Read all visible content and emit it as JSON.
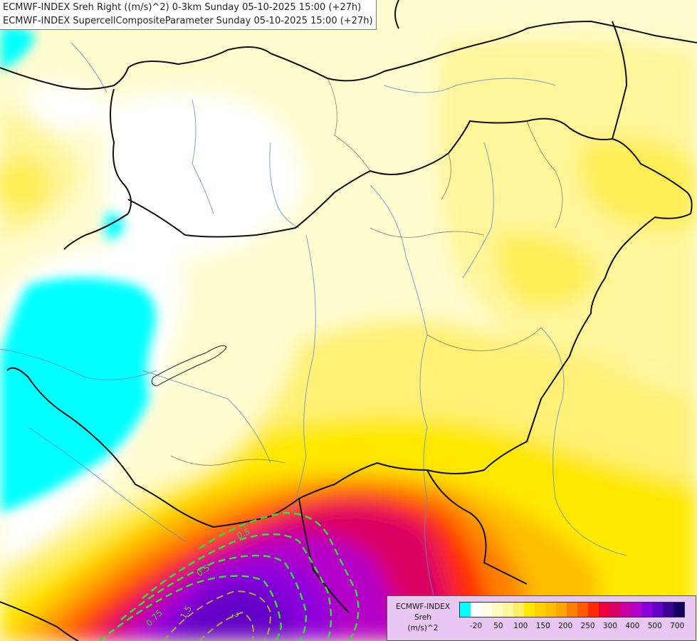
{
  "header": {
    "line1": "ECMWF-INDEX Sreh Right ((m/s)^2) 0-3km Sunday 05-10-2025 15:00 (+27h)",
    "line2": "ECMWF-INDEX SupercellCompositeParameter Sunday 05-10-2025 15:00 (+27h)"
  },
  "legend": {
    "title_line1": "ECMWF-INDEX",
    "title_line2": "Sreh",
    "title_line3": "(m/s)^2",
    "colors": [
      "#00ffff",
      "#ffffff",
      "#fffde6",
      "#fffac0",
      "#fff59a",
      "#ffef66",
      "#ffe800",
      "#ffd200",
      "#ffbd00",
      "#ffa500",
      "#ff8000",
      "#ff5a00",
      "#ff2a00",
      "#f0003c",
      "#dc0064",
      "#c800a0",
      "#b400c8",
      "#8c00dc",
      "#6400c8",
      "#3c0096",
      "#140064"
    ],
    "ticks": [
      "-20",
      "50",
      "100",
      "150",
      "200",
      "250",
      "300",
      "400",
      "500",
      "700"
    ]
  },
  "contours": {
    "labels": [
      "0.5",
      "0.5",
      "0.75",
      "1.5",
      "2"
    ],
    "color": "#33dd33"
  }
}
